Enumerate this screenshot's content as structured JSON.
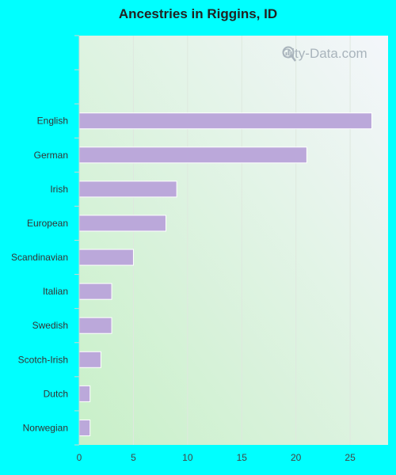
{
  "title": "Ancestries in Riggins, ID",
  "watermark": "City-Data.com",
  "colors": {
    "background": "#00ffff",
    "bar": "#bba8da",
    "plot_bg_start": "#c8f0c8",
    "plot_bg_end": "#f4f6fb"
  },
  "chart_data": {
    "type": "bar",
    "orientation": "horizontal",
    "title": "Ancestries in Riggins, ID",
    "categories": [
      "English",
      "German",
      "Irish",
      "European",
      "Scandinavian",
      "Italian",
      "Swedish",
      "Scotch-Irish",
      "Dutch",
      "Norwegian"
    ],
    "values": [
      27,
      21,
      9,
      8,
      5,
      3,
      3,
      2,
      1,
      1
    ],
    "xlim": [
      0,
      28.5
    ],
    "xticks": [
      0,
      5,
      10,
      15,
      20,
      25
    ],
    "xlabel": "",
    "ylabel": "",
    "grid": "vertical",
    "legend": "none"
  }
}
